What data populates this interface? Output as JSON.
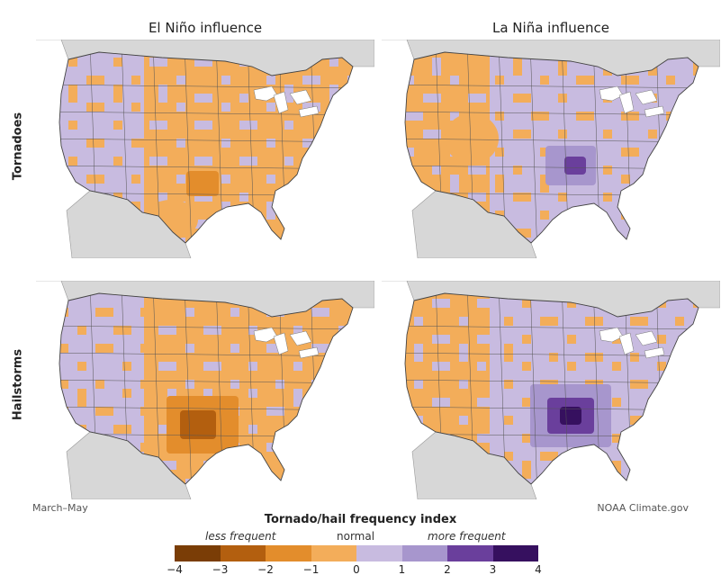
{
  "columns": [
    {
      "title": "El Niño influence"
    },
    {
      "title": "La Niña influence"
    }
  ],
  "rows": [
    {
      "label": "Tornadoes"
    },
    {
      "label": "Hailstorms"
    }
  ],
  "panels": [
    {
      "phenomenon": "Tornadoes",
      "phase": "El Niño",
      "dominant_category": -1,
      "peak_category": -2,
      "peak_region": "southern Plains"
    },
    {
      "phenomenon": "Tornadoes",
      "phase": "La Niña",
      "dominant_category": 1,
      "peak_category": 3,
      "peak_region": "Ohio/Tennessee Valley"
    },
    {
      "phenomenon": "Hailstorms",
      "phase": "El Niño",
      "dominant_category": -1,
      "peak_category": -3,
      "peak_region": "southern Plains"
    },
    {
      "phenomenon": "Hailstorms",
      "phase": "La Niña",
      "dominant_category": 1,
      "peak_category": 4,
      "peak_region": "Mid-South"
    }
  ],
  "footer": {
    "season": "March–May",
    "credit": "NOAA Climate.gov"
  },
  "legend": {
    "title": "Tornado/hail frequency index",
    "less_label": "less frequent",
    "normal_label": "normal",
    "more_label": "more frequent",
    "ticks": [
      "−4",
      "−3",
      "−2",
      "−1",
      "0",
      "1",
      "2",
      "3",
      "4"
    ],
    "colors": [
      "#7a3d06",
      "#b35f0f",
      "#e38d2c",
      "#f3ad5a",
      "#f6bf86",
      "#c8bbe0",
      "#a796cd",
      "#6a3f9c",
      "#36105f"
    ]
  },
  "map_colors": {
    "water": "#ffffff",
    "land_outside": "#d7d7d7",
    "border": "#555555"
  }
}
